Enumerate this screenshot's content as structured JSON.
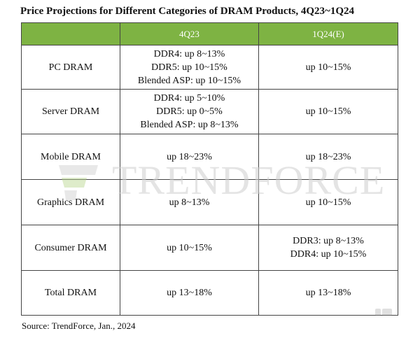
{
  "title": "Price Projections for Different Categories of DRAM Products, 4Q23~1Q24",
  "table": {
    "headers": [
      "",
      "4Q23",
      "1Q24(E)"
    ],
    "rows": [
      {
        "category": "PC DRAM",
        "q4_23": [
          "DDR4: up 8~13%",
          "DDR5:  up 10~15%",
          "Blended ASP: up 10~15%"
        ],
        "q1_24": [
          "up  10~15%"
        ]
      },
      {
        "category": "Server DRAM",
        "q4_23": [
          "DDR4: up 5~10%",
          "DDR5: up 0~5%",
          "Blended ASP: up 8~13%"
        ],
        "q1_24": [
          "up  10~15%"
        ]
      },
      {
        "category": "Mobile DRAM",
        "q4_23": [
          "up 18~23%"
        ],
        "q1_24": [
          "up 18~23%"
        ]
      },
      {
        "category": "Graphics DRAM",
        "q4_23": [
          "up 8~13%"
        ],
        "q1_24": [
          "up  10~15%"
        ]
      },
      {
        "category": "Consumer DRAM",
        "q4_23": [
          "up 10~15%"
        ],
        "q1_24": [
          "DDR3: up 8~13%",
          "DDR4: up 10~15%"
        ]
      },
      {
        "category": "Total DRAM",
        "q4_23": [
          "up 13~18%"
        ],
        "q1_24": [
          "up 13~18%"
        ]
      }
    ]
  },
  "watermark": "TRENDFORCE",
  "source": "Source: TrendForce, Jan., 2024",
  "colors": {
    "header_bg": "#7eb343",
    "header_text": "#ffffff",
    "border": "#444444"
  }
}
